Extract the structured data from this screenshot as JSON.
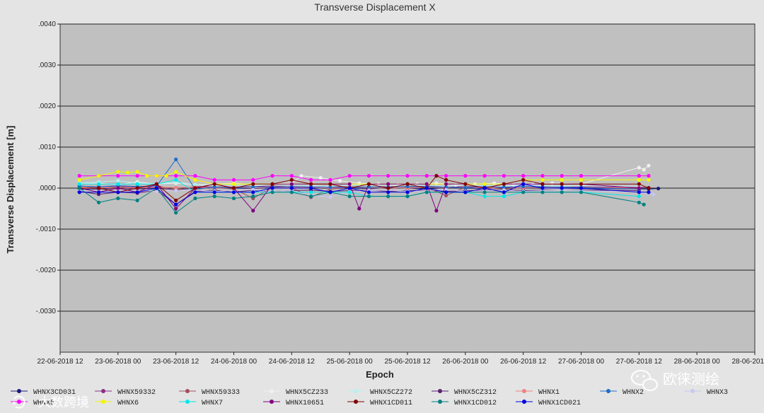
{
  "chart_data": {
    "type": "line",
    "title": "Transverse Displacement X",
    "xlabel": "Epoch",
    "ylabel": "Transverse Displacement [m]",
    "ylim": [
      -0.004,
      0.004
    ],
    "y_ticks": [
      ".0040",
      ".0030",
      ".0020",
      ".0010",
      ".0000",
      "-.0010",
      "-.0020",
      "-.0030"
    ],
    "x_ticks": [
      "22-06-2018 12",
      "23-06-2018 00",
      "23-06-2018 12",
      "24-06-2018 00",
      "24-06-2018 12",
      "25-06-2018 00",
      "25-06-2018 12",
      "26-06-2018 00",
      "26-06-2018 12",
      "27-06-2018 00",
      "27-06-2018 12",
      "28-06-2018 00",
      "28-06-2018 12"
    ],
    "x_hours": [
      0,
      12,
      24,
      36,
      48,
      60,
      72,
      84,
      96,
      108,
      120,
      132,
      144
    ],
    "xlim": [
      0,
      144
    ],
    "grid": "horizontal",
    "background": "#c0c0c0",
    "legend_position": "bottom",
    "series": [
      {
        "name": "WHNX3CD031",
        "color": "#1a1a7a",
        "x": [
          4,
          8,
          12,
          16,
          20,
          24,
          28,
          32,
          36,
          40,
          44,
          48,
          52,
          56,
          60,
          64,
          68,
          72,
          76,
          80,
          84,
          88,
          92,
          96,
          100,
          104,
          108,
          122,
          124
        ],
        "values": [
          -3e-05,
          -2e-05,
          -1e-05,
          -2e-05,
          0.0,
          -4e-05,
          0.0,
          1e-05,
          0.0,
          -1e-05,
          1e-05,
          0.0,
          1e-05,
          -1e-05,
          0.0,
          -1e-05,
          1e-05,
          0.0,
          -2e-05,
          1e-05,
          0.0,
          -1e-05,
          1e-05,
          0.0,
          1e-05,
          0.0,
          -1e-05,
          -2e-05,
          -1e-05
        ]
      },
      {
        "name": "WHNX59332",
        "color": "#8b2e86",
        "x": [
          4,
          8,
          12,
          16,
          20,
          24,
          28,
          32,
          36,
          40,
          44,
          48,
          52,
          56,
          60,
          64,
          68,
          72,
          76,
          80,
          84,
          88,
          92,
          96,
          100,
          104,
          108,
          120,
          122
        ],
        "values": [
          5e-05,
          3e-05,
          4e-05,
          2e-05,
          6e-05,
          -5e-05,
          4e-05,
          3e-05,
          2e-05,
          4e-05,
          5e-05,
          3e-05,
          2e-05,
          4e-05,
          3e-05,
          2e-05,
          4e-05,
          3e-05,
          5e-05,
          2e-05,
          4e-05,
          3e-05,
          2e-05,
          4e-05,
          3e-05,
          2e-05,
          3e-05,
          2e-05,
          1e-05
        ]
      },
      {
        "name": "WHNX59333",
        "color": "#a05060",
        "x": [
          4,
          8,
          12,
          16,
          20,
          24,
          28,
          32,
          36,
          40,
          44,
          48,
          52,
          56,
          60,
          64,
          68,
          72,
          76,
          80,
          84,
          88,
          92,
          96,
          100,
          104,
          108,
          120
        ],
        "values": [
          1e-05,
          2e-05,
          -2e-05,
          1e-05,
          2e-05,
          -4e-05,
          2e-05,
          1e-05,
          -2e-05,
          -0.00025,
          2e-05,
          1e-05,
          -0.00022,
          -2e-05,
          1e-05,
          2e-05,
          -1e-05,
          2e-05,
          1e-05,
          -0.00018,
          2e-05,
          1e-05,
          -2e-05,
          1e-05,
          2e-05,
          1e-05,
          1e-05,
          -1e-05
        ]
      },
      {
        "name": "WHNX5CZ233",
        "color": "#f0f0f0",
        "x": [
          4,
          8,
          12,
          16,
          20,
          24,
          28,
          32,
          36,
          40,
          44,
          48,
          50,
          54,
          58,
          62,
          66,
          70,
          74,
          78,
          82,
          86,
          90,
          94,
          98,
          102,
          108,
          120,
          121,
          122
        ],
        "values": [
          0.0001,
          0.00012,
          8e-05,
          0.00015,
          0.0001,
          0.00012,
          8e-05,
          0.0001,
          0.00012,
          8e-05,
          0.0001,
          0.00012,
          0.0003,
          0.00025,
          0.00018,
          0.00012,
          0.0001,
          8e-05,
          0.0001,
          0.00012,
          8e-05,
          0.0001,
          0.00012,
          8e-05,
          0.0001,
          0.00012,
          0.0001,
          0.0005,
          0.00045,
          0.00055
        ]
      },
      {
        "name": "WHNX5CZ272",
        "color": "#b8f0f0",
        "x": [
          4,
          8,
          12,
          16,
          20,
          24,
          28,
          32,
          36,
          40,
          44,
          48,
          52,
          56,
          60,
          64,
          68,
          72,
          76,
          80,
          84,
          88,
          92,
          96,
          100,
          104,
          108,
          120
        ],
        "values": [
          0.00012,
          0.00015,
          0.00018,
          0.00012,
          0.0001,
          0.00015,
          8e-05,
          5e-05,
          8e-05,
          5e-05,
          0.0001,
          8e-05,
          6e-05,
          4e-05,
          8e-05,
          6e-05,
          5e-05,
          8e-05,
          6e-05,
          5e-05,
          8e-05,
          6e-05,
          5e-05,
          8e-05,
          6e-05,
          5e-05,
          6e-05,
          4e-05
        ]
      },
      {
        "name": "WHNX5CZ312",
        "color": "#5a2070",
        "x": [
          4,
          8,
          12,
          16,
          20,
          24,
          28,
          32,
          36,
          40,
          44,
          48,
          52,
          56,
          60,
          64,
          68,
          72,
          76,
          80,
          84,
          88,
          92,
          96,
          100,
          104,
          108,
          120
        ],
        "values": [
          -8e-05,
          -0.00015,
          -0.0001,
          -0.00012,
          -5e-05,
          -0.0004,
          -8e-05,
          -5e-05,
          -0.0001,
          -5e-05,
          -8e-05,
          -6e-05,
          -5e-05,
          -8e-05,
          -6e-05,
          -5e-05,
          -8e-05,
          -6e-05,
          -5e-05,
          -8e-05,
          -6e-05,
          -5e-05,
          -4e-05,
          -6e-05,
          -5e-05,
          -4e-05,
          -5e-05,
          -6e-05
        ]
      },
      {
        "name": "WHNX1",
        "color": "#f08080",
        "x": [
          4,
          8,
          12,
          16,
          20,
          24,
          28,
          32,
          36,
          40,
          44,
          48,
          52,
          56,
          60,
          64,
          68,
          72,
          76,
          80,
          84,
          88,
          92,
          96,
          100,
          104,
          108,
          120
        ],
        "values": [
          2e-05,
          0.0,
          2e-05,
          0.0,
          2e-05,
          1e-05,
          2e-05,
          0.0,
          2e-05,
          0.0,
          2e-05,
          1e-05,
          2e-05,
          0.0,
          2e-05,
          1e-05,
          2e-05,
          0.0,
          2e-05,
          1e-05,
          2e-05,
          0.0,
          2e-05,
          1e-05,
          2e-05,
          0.0,
          1e-05,
          1e-05
        ]
      },
      {
        "name": "WHNX2",
        "color": "#1e6ec8",
        "x": [
          4,
          8,
          12,
          16,
          20,
          24,
          28,
          32,
          36,
          40,
          44,
          48,
          52,
          56,
          60,
          64,
          68,
          72,
          76,
          80,
          84,
          88,
          92,
          96,
          100,
          104,
          108,
          120
        ],
        "values": [
          5e-05,
          3e-05,
          6e-05,
          4e-05,
          5e-05,
          0.0007,
          -3e-05,
          2e-05,
          1e-05,
          3e-05,
          2e-05,
          4e-05,
          3e-05,
          2e-05,
          1e-05,
          3e-05,
          2e-05,
          4e-05,
          3e-05,
          2e-05,
          1e-05,
          3e-05,
          2e-05,
          4e-05,
          3e-05,
          2e-05,
          1e-05,
          -2e-05
        ]
      },
      {
        "name": "WHNX3",
        "color": "#c8c8f0",
        "x": [
          4,
          8,
          12,
          16,
          20,
          24,
          28,
          32,
          36,
          40,
          44,
          48,
          52,
          56,
          60,
          64,
          68,
          72,
          76,
          80,
          84,
          88,
          92,
          96,
          100,
          104,
          108,
          120,
          123
        ],
        "values": [
          -5e-05,
          -8e-05,
          -6e-05,
          -4e-05,
          -8e-05,
          -6e-05,
          -5e-05,
          -8e-05,
          -6e-05,
          -4e-05,
          -8e-05,
          -6e-05,
          -0.00018,
          -0.00022,
          -8e-05,
          -6e-05,
          -5e-05,
          -8e-05,
          -6e-05,
          -4e-05,
          -8e-05,
          -6e-05,
          -5e-05,
          -8e-05,
          -6e-05,
          -4e-05,
          -6e-05,
          -0.0001,
          -0.00015
        ]
      },
      {
        "name": "WHNX5",
        "color": "#ff00ff",
        "x": [
          4,
          8,
          12,
          16,
          20,
          24,
          28,
          32,
          36,
          40,
          44,
          48,
          52,
          56,
          60,
          64,
          68,
          72,
          76,
          80,
          84,
          88,
          92,
          96,
          100,
          104,
          108,
          120,
          122
        ],
        "values": [
          0.0003,
          0.0003,
          0.0003,
          0.0003,
          0.0003,
          0.0003,
          0.0003,
          0.0002,
          0.0002,
          0.0002,
          0.0003,
          0.0003,
          0.0002,
          0.0002,
          0.0003,
          0.0003,
          0.0003,
          0.0003,
          0.0003,
          0.0003,
          0.0003,
          0.0003,
          0.0003,
          0.0003,
          0.0003,
          0.0003,
          0.0003,
          0.0003,
          0.0003
        ]
      },
      {
        "name": "WHNX6",
        "color": "#f5f500",
        "x": [
          4,
          8,
          12,
          14,
          16,
          18,
          20,
          22,
          24,
          28,
          32,
          36,
          40,
          44,
          48,
          52,
          56,
          60,
          64,
          68,
          72,
          76,
          80,
          84,
          88,
          92,
          96,
          100,
          104,
          108,
          120,
          122
        ],
        "values": [
          0.0002,
          0.0003,
          0.0004,
          0.00038,
          0.0004,
          0.0003,
          0.0003,
          0.0003,
          0.0004,
          0.0002,
          0.0001,
          0.0001,
          0.0001,
          0.0001,
          0.0001,
          0.0001,
          0.0001,
          0.0001,
          0.0001,
          0.0001,
          0.0001,
          0.0001,
          0.0001,
          0.0001,
          0.0001,
          0.0001,
          0.0002,
          0.0002,
          0.0002,
          0.0002,
          0.0002,
          0.0002
        ]
      },
      {
        "name": "WHNX7",
        "color": "#00e8e8",
        "x": [
          4,
          8,
          12,
          16,
          20,
          24,
          28,
          32,
          36,
          40,
          44,
          48,
          52,
          56,
          60,
          64,
          68,
          72,
          76,
          80,
          84,
          88,
          92,
          96,
          100,
          104,
          108,
          120
        ],
        "values": [
          0.0001,
          0.0001,
          0.0001,
          0.0001,
          0.0001,
          0.0002,
          -0.0001,
          -0.0001,
          -0.0001,
          -0.0001,
          -0.0001,
          -0.0001,
          -0.0001,
          -0.0001,
          -0.0001,
          -0.0002,
          -0.0002,
          -0.0002,
          -0.0001,
          -0.0001,
          -0.0001,
          -0.0002,
          -0.0002,
          -0.0001,
          -0.0001,
          -0.0001,
          -0.0001,
          -0.0002
        ]
      },
      {
        "name": "WHNX10651",
        "color": "#800080",
        "x": [
          4,
          8,
          12,
          16,
          20,
          24,
          28,
          32,
          36,
          40,
          44,
          48,
          52,
          56,
          60,
          62,
          64,
          68,
          72,
          76,
          78,
          80,
          84,
          88,
          92,
          96,
          100,
          104,
          108,
          120
        ],
        "values": [
          0.0,
          -0.0001,
          0.0,
          -0.0001,
          0.0001,
          -0.0005,
          0.0,
          0.0001,
          0.0,
          -0.00055,
          0.0001,
          0.0001,
          0.0001,
          0.0001,
          0.0001,
          -0.0005,
          0.0001,
          0.0001,
          0.0001,
          0.0001,
          -0.00055,
          0.0001,
          0.0001,
          0.0,
          0.0001,
          0.0001,
          0.0001,
          0.0001,
          0.0001,
          0.0
        ]
      },
      {
        "name": "WHNX1CD011",
        "color": "#800000",
        "x": [
          4,
          8,
          12,
          16,
          20,
          24,
          28,
          32,
          36,
          40,
          44,
          48,
          52,
          56,
          60,
          64,
          68,
          72,
          76,
          78,
          80,
          84,
          88,
          92,
          96,
          100,
          104,
          108,
          120,
          122
        ],
        "values": [
          0.0,
          0.0,
          -0.0001,
          0.0,
          0.0001,
          -0.0003,
          0.0,
          0.0001,
          0.0,
          0.0001,
          0.0001,
          0.0002,
          0.0001,
          0.0001,
          0.0,
          0.0001,
          0.0,
          0.0001,
          0.0,
          0.0003,
          0.0002,
          0.0001,
          0.0,
          0.0001,
          0.0002,
          0.0001,
          0.0001,
          0.0001,
          0.0001,
          0.0
        ]
      },
      {
        "name": "WHNX1CD012",
        "color": "#008080",
        "x": [
          4,
          8,
          12,
          16,
          20,
          24,
          28,
          32,
          36,
          40,
          44,
          48,
          52,
          56,
          60,
          64,
          68,
          72,
          76,
          80,
          84,
          88,
          92,
          96,
          100,
          104,
          108,
          120,
          121
        ],
        "values": [
          0.0,
          -0.00035,
          -0.00025,
          -0.0003,
          0.0,
          -0.0006,
          -0.00025,
          -0.0002,
          -0.00025,
          -0.0002,
          -0.0001,
          -0.0001,
          -0.0002,
          -0.0001,
          -0.0002,
          -0.0002,
          -0.0002,
          -0.0002,
          -0.0001,
          -0.0001,
          -0.0001,
          -0.0001,
          -0.0001,
          -0.0001,
          -0.0001,
          -0.0001,
          -0.0001,
          -0.00035,
          -0.0004
        ]
      },
      {
        "name": "WHNX1CD021",
        "color": "#0000e0",
        "x": [
          4,
          8,
          12,
          16,
          20,
          24,
          28,
          32,
          36,
          40,
          44,
          48,
          52,
          56,
          60,
          64,
          68,
          72,
          76,
          80,
          84,
          88,
          92,
          96,
          100,
          104,
          108,
          120,
          122
        ],
        "values": [
          -0.0001,
          -0.0001,
          -0.0001,
          -0.0001,
          0.0,
          -0.0004,
          -0.0001,
          -0.0001,
          -0.0001,
          -0.0001,
          0.0,
          0.0,
          0.0,
          -0.0001,
          0.0,
          -0.0001,
          -0.0001,
          -0.0001,
          0.0,
          -0.0001,
          -0.0001,
          0.0,
          -0.0001,
          0.0001,
          0.0,
          0.0,
          0.0,
          -0.0001,
          -0.0001
        ]
      }
    ]
  },
  "watermark": {
    "right_text": "欧徕测绘",
    "right_icon": "wechat-icon",
    "left_text": "大数跨境",
    "left_icon": "brand-logo-icon"
  }
}
